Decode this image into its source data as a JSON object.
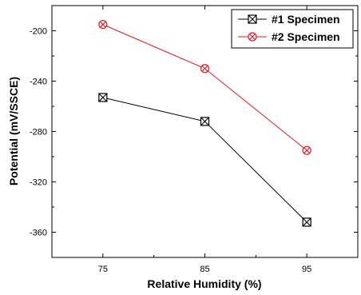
{
  "chart_data": {
    "type": "line",
    "title": "",
    "xlabel": "Relative Humidity (%)",
    "ylabel": "Potential (mV/SSCE)",
    "categories": [
      "75",
      "85",
      "95"
    ],
    "x": [
      75,
      85,
      95
    ],
    "xlim": [
      70,
      100
    ],
    "ylim": [
      -380,
      -180
    ],
    "yticks": [
      -200,
      -240,
      -280,
      -320,
      -360
    ],
    "grid": false,
    "legend_position": "top-right",
    "series": [
      {
        "name": "#1 Specimen",
        "values": [
          -253,
          -272,
          -352
        ],
        "color": "#000000",
        "marker": "square-with-x"
      },
      {
        "name": "#2 Specimen",
        "values": [
          -195,
          -230,
          -295
        ],
        "color": "#e8141e",
        "marker": "circle-with-x"
      }
    ]
  }
}
